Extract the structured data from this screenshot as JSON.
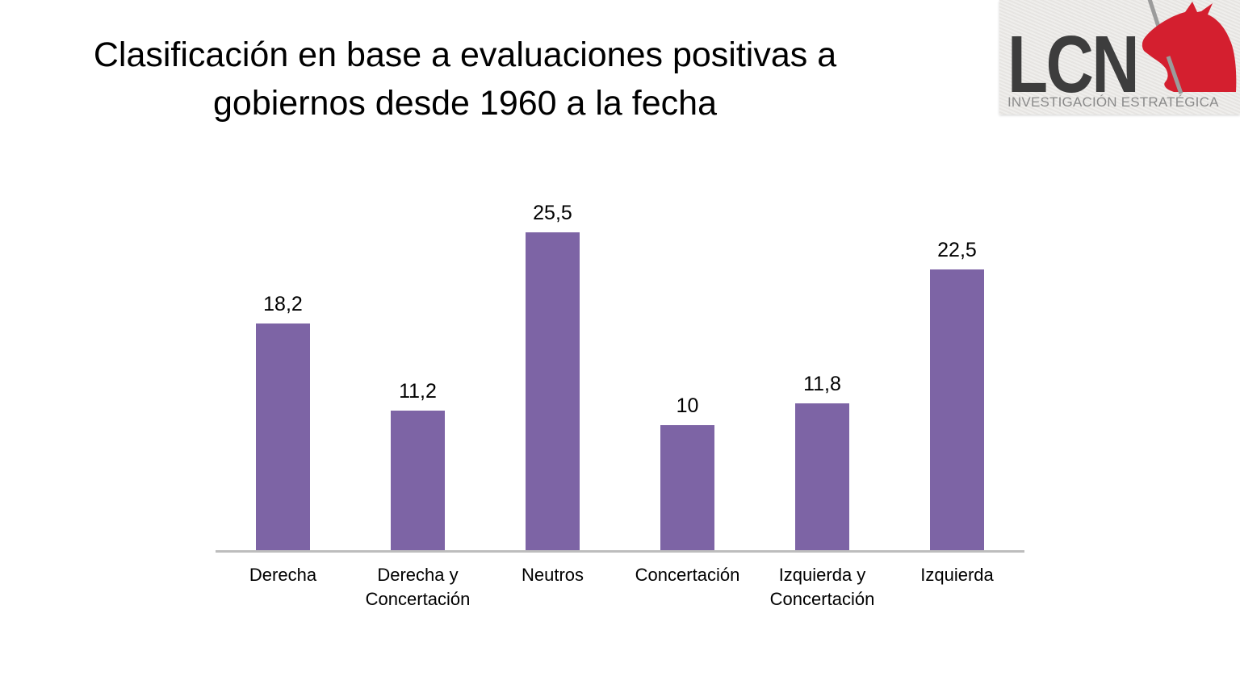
{
  "title": "Clasificación en base a evaluaciones positivas a gobiernos desde 1960 a la fecha",
  "logo": {
    "wordmark": "LCN",
    "tagline": "INVESTIGACIÓN ESTRATÉGICA",
    "background": "#EAE8E5",
    "wordmark_color": "#3D3D3D",
    "tagline_color": "#8A8A8A",
    "horse_color": "#D41F2F",
    "lance_color": "#9B9B9B"
  },
  "chart_data": {
    "type": "bar",
    "title": "Clasificación en base a evaluaciones positivas a gobiernos desde 1960 a la fecha",
    "categories": [
      "Derecha",
      "Derecha y Concertación",
      "Neutros",
      "Concertación",
      "Izquierda y Concertación",
      "Izquierda"
    ],
    "values": [
      18.2,
      11.2,
      25.5,
      10,
      11.8,
      22.5
    ],
    "value_labels": [
      "18,2",
      "11,2",
      "25,5",
      "10",
      "11,8",
      "22,5"
    ],
    "xlabel": "",
    "ylabel": "",
    "ylim": [
      0,
      26
    ],
    "grid": false,
    "legend": null,
    "y_axis_visible": false,
    "data_labels_position": "above",
    "bar_color": "#7D64A5",
    "axis_line_color": "#BDBDBD",
    "label_color": "#000000"
  }
}
